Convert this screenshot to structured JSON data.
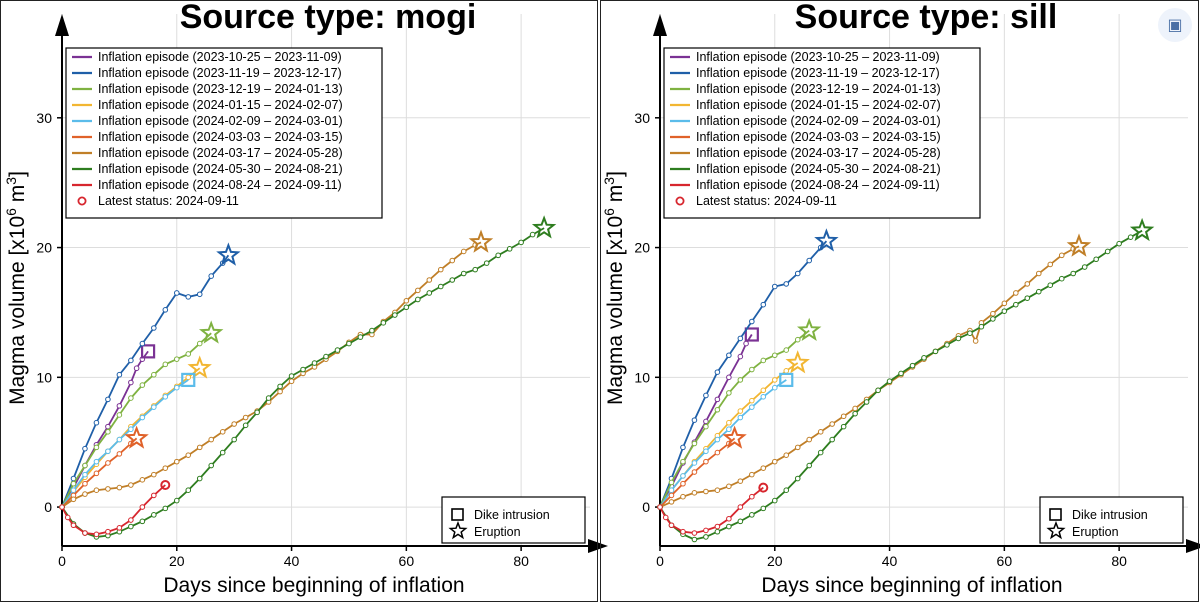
{
  "chart_data": [
    {
      "type": "line",
      "title": "Source type: mogi",
      "xlabel": "Days since beginning of inflation",
      "ylabel": "Magma volume [x10",
      "ylabel_sup": "6",
      "ylabel_unit": " m",
      "ylabel_sup2": "3",
      "ylabel_end": "]",
      "xlim": [
        0,
        92
      ],
      "ylim": [
        -3,
        38
      ],
      "xticks": [
        0,
        20,
        40,
        60,
        80
      ],
      "yticks": [
        0,
        10,
        20,
        30
      ],
      "grid": true,
      "legend_position": "top-left",
      "latest_status_label": "Latest status: 2024-09-11",
      "marker_legend": {
        "dike": "Dike intrusion",
        "eruption": "Eruption"
      },
      "series": [
        {
          "name": "Inflation episode (2023-10-25 – 2023-11-09)",
          "color": "#7b3294",
          "end_marker": "square",
          "x": [
            0,
            2,
            4,
            6,
            8,
            10,
            12,
            13,
            14,
            15
          ],
          "y": [
            0,
            1.5,
            3.2,
            4.8,
            6.2,
            7.8,
            9.6,
            10.7,
            11.4,
            12.0
          ]
        },
        {
          "name": "Inflation episode (2023-11-19 – 2023-12-17)",
          "color": "#1f5fa8",
          "end_marker": "star",
          "x": [
            0,
            2,
            4,
            6,
            8,
            10,
            12,
            14,
            16,
            18,
            20,
            22,
            24,
            26,
            28,
            29
          ],
          "y": [
            0,
            2.2,
            4.5,
            6.5,
            8.3,
            10.2,
            11.3,
            12.6,
            13.8,
            15.2,
            16.5,
            16.2,
            16.4,
            17.8,
            18.8,
            19.4
          ]
        },
        {
          "name": "Inflation episode (2023-12-19 – 2024-01-13)",
          "color": "#7fb241",
          "end_marker": "star",
          "x": [
            0,
            2,
            4,
            6,
            8,
            10,
            12,
            14,
            16,
            18,
            20,
            22,
            24,
            26
          ],
          "y": [
            0,
            1.8,
            3.2,
            4.6,
            5.8,
            7.1,
            8.4,
            9.4,
            10.2,
            11.0,
            11.4,
            11.8,
            12.6,
            13.4
          ]
        },
        {
          "name": "Inflation episode (2024-01-15 – 2024-02-07)",
          "color": "#f2b632",
          "end_marker": "star",
          "x": [
            0,
            2,
            4,
            6,
            8,
            10,
            12,
            14,
            16,
            18,
            20,
            22,
            24
          ],
          "y": [
            0,
            1.2,
            2.3,
            3.3,
            4.3,
            5.2,
            6.2,
            7.0,
            7.8,
            8.6,
            9.3,
            10.0,
            10.7
          ]
        },
        {
          "name": "Inflation episode (2024-02-09 – 2024-03-01)",
          "color": "#5bbcea",
          "end_marker": "square",
          "x": [
            0,
            2,
            4,
            6,
            8,
            10,
            12,
            14,
            16,
            18,
            20,
            22
          ],
          "y": [
            0,
            1.3,
            2.5,
            3.5,
            4.3,
            5.2,
            6.0,
            6.9,
            7.7,
            8.5,
            9.2,
            9.8
          ]
        },
        {
          "name": "Inflation episode (2024-03-03 – 2024-03-15)",
          "color": "#e0622a",
          "end_marker": "star",
          "x": [
            0,
            2,
            4,
            6,
            8,
            10,
            12,
            13
          ],
          "y": [
            0,
            0.9,
            1.8,
            2.6,
            3.4,
            4.1,
            4.9,
            5.3
          ]
        },
        {
          "name": "Inflation episode (2024-03-17 – 2024-05-28)",
          "color": "#c07f28",
          "end_marker": "star",
          "x": [
            0,
            2,
            4,
            6,
            8,
            10,
            12,
            14,
            16,
            18,
            20,
            22,
            24,
            26,
            28,
            30,
            32,
            34,
            36,
            38,
            40,
            42,
            44,
            46,
            48,
            50,
            52,
            54,
            56,
            58,
            60,
            62,
            64,
            66,
            68,
            70,
            72,
            73
          ],
          "y": [
            0,
            0.6,
            1.0,
            1.3,
            1.4,
            1.5,
            1.7,
            2.1,
            2.5,
            3.0,
            3.5,
            4.0,
            4.6,
            5.2,
            5.8,
            6.4,
            6.9,
            7.4,
            8.1,
            8.9,
            9.7,
            10.3,
            10.8,
            11.4,
            12.0,
            12.7,
            13.3,
            13.3,
            14.3,
            15.0,
            15.9,
            16.7,
            17.5,
            18.3,
            19.0,
            19.7,
            20.2,
            20.4
          ]
        },
        {
          "name": "Inflation episode (2024-05-30 – 2024-08-21)",
          "color": "#2e7d1f",
          "end_marker": "star",
          "x": [
            0,
            2,
            4,
            6,
            8,
            10,
            12,
            14,
            16,
            18,
            20,
            22,
            24,
            26,
            28,
            30,
            32,
            34,
            36,
            38,
            40,
            42,
            44,
            46,
            48,
            50,
            52,
            54,
            56,
            58,
            60,
            62,
            64,
            66,
            68,
            70,
            72,
            74,
            76,
            78,
            80,
            82,
            84
          ],
          "y": [
            0,
            -1.3,
            -2.0,
            -2.3,
            -2.2,
            -1.9,
            -1.5,
            -1.1,
            -0.6,
            -0.1,
            0.5,
            1.3,
            2.2,
            3.2,
            4.2,
            5.2,
            6.3,
            7.3,
            8.4,
            9.3,
            10.1,
            10.6,
            11.1,
            11.6,
            12.1,
            12.6,
            13.1,
            13.6,
            14.2,
            14.8,
            15.4,
            16.0,
            16.5,
            17.0,
            17.5,
            18.0,
            18.3,
            18.8,
            19.4,
            19.9,
            20.4,
            21.0,
            21.5
          ]
        },
        {
          "name": "Inflation episode (2024-08-24 – 2024-09-11)",
          "color": "#d7262e",
          "end_marker": "circle",
          "x": [
            0,
            1,
            2,
            4,
            6,
            8,
            10,
            12,
            14,
            16,
            18
          ],
          "y": [
            0,
            -0.8,
            -1.4,
            -2.0,
            -2.1,
            -1.9,
            -1.6,
            -1.0,
            0.0,
            0.9,
            1.7
          ]
        }
      ]
    },
    {
      "type": "line",
      "title": "Source type: sill",
      "xlabel": "Days since beginning of inflation",
      "ylabel": "Magma volume [x10",
      "ylabel_sup": "6",
      "ylabel_unit": " m",
      "ylabel_sup2": "3",
      "ylabel_end": "]",
      "xlim": [
        0,
        92
      ],
      "ylim": [
        -3,
        38
      ],
      "xticks": [
        0,
        20,
        40,
        60,
        80
      ],
      "yticks": [
        0,
        10,
        20,
        30
      ],
      "grid": true,
      "legend_position": "top-left",
      "latest_status_label": "Latest status: 2024-09-11",
      "marker_legend": {
        "dike": "Dike intrusion",
        "eruption": "Eruption"
      },
      "series": [
        {
          "name": "Inflation episode (2023-10-25 – 2023-11-09)",
          "color": "#7b3294",
          "end_marker": "square",
          "x": [
            0,
            2,
            4,
            6,
            8,
            10,
            12,
            14,
            15,
            16
          ],
          "y": [
            0,
            1.6,
            3.4,
            5.0,
            6.6,
            8.3,
            10.0,
            11.6,
            12.6,
            13.3
          ]
        },
        {
          "name": "Inflation episode (2023-11-19 – 2023-12-17)",
          "color": "#1f5fa8",
          "end_marker": "star",
          "x": [
            0,
            2,
            4,
            6,
            8,
            10,
            12,
            14,
            16,
            18,
            20,
            22,
            24,
            26,
            28,
            29
          ],
          "y": [
            0,
            2.2,
            4.6,
            6.7,
            8.6,
            10.4,
            11.7,
            13.0,
            14.3,
            15.6,
            17.0,
            17.2,
            18.0,
            19.0,
            20.0,
            20.5
          ]
        },
        {
          "name": "Inflation episode (2023-12-19 – 2024-01-13)",
          "color": "#7fb241",
          "end_marker": "star",
          "x": [
            0,
            2,
            4,
            6,
            8,
            10,
            12,
            14,
            16,
            18,
            20,
            22,
            24,
            26
          ],
          "y": [
            0,
            1.9,
            3.5,
            4.9,
            6.2,
            7.5,
            8.8,
            9.8,
            10.6,
            11.3,
            11.7,
            12.1,
            12.9,
            13.6
          ]
        },
        {
          "name": "Inflation episode (2024-01-15 – 2024-02-07)",
          "color": "#f2b632",
          "end_marker": "star",
          "x": [
            0,
            2,
            4,
            6,
            8,
            10,
            12,
            14,
            16,
            18,
            20,
            22,
            24
          ],
          "y": [
            0,
            1.3,
            2.4,
            3.5,
            4.5,
            5.5,
            6.5,
            7.4,
            8.2,
            9.0,
            9.8,
            10.5,
            11.1
          ]
        },
        {
          "name": "Inflation episode (2024-02-09 – 2024-03-01)",
          "color": "#5bbcea",
          "end_marker": "square",
          "x": [
            0,
            2,
            4,
            6,
            8,
            10,
            12,
            14,
            16,
            18,
            20,
            22
          ],
          "y": [
            0,
            1.3,
            2.4,
            3.4,
            4.3,
            5.2,
            6.0,
            6.9,
            7.7,
            8.5,
            9.2,
            9.8
          ]
        },
        {
          "name": "Inflation episode (2024-03-03 – 2024-03-15)",
          "color": "#e0622a",
          "end_marker": "star",
          "x": [
            0,
            2,
            4,
            6,
            8,
            10,
            12,
            13
          ],
          "y": [
            0,
            0.9,
            1.8,
            2.7,
            3.5,
            4.2,
            4.9,
            5.3
          ]
        },
        {
          "name": "Inflation episode (2024-03-17 – 2024-05-28)",
          "color": "#c07f28",
          "end_marker": "star",
          "x": [
            0,
            2,
            4,
            6,
            8,
            10,
            12,
            14,
            16,
            18,
            20,
            22,
            24,
            26,
            28,
            30,
            32,
            34,
            36,
            38,
            40,
            42,
            44,
            46,
            48,
            50,
            52,
            54,
            55,
            56,
            58,
            60,
            62,
            64,
            66,
            68,
            70,
            72,
            73
          ],
          "y": [
            0,
            0.4,
            0.8,
            1.1,
            1.2,
            1.3,
            1.6,
            2.0,
            2.5,
            3.0,
            3.5,
            4.0,
            4.6,
            5.2,
            5.8,
            6.4,
            7.0,
            7.6,
            8.3,
            9.0,
            9.6,
            10.2,
            10.8,
            11.4,
            12.0,
            12.6,
            13.2,
            13.6,
            12.8,
            14.2,
            14.9,
            15.7,
            16.5,
            17.2,
            18.0,
            18.7,
            19.4,
            19.9,
            20.1
          ]
        },
        {
          "name": "Inflation episode (2024-05-30 – 2024-08-21)",
          "color": "#2e7d1f",
          "end_marker": "star",
          "x": [
            0,
            2,
            4,
            6,
            8,
            10,
            12,
            14,
            16,
            18,
            20,
            22,
            24,
            26,
            28,
            30,
            32,
            34,
            36,
            38,
            40,
            42,
            44,
            46,
            48,
            50,
            52,
            54,
            56,
            58,
            60,
            62,
            64,
            66,
            68,
            70,
            72,
            74,
            76,
            78,
            80,
            82,
            84
          ],
          "y": [
            0,
            -1.4,
            -2.1,
            -2.5,
            -2.3,
            -1.9,
            -1.5,
            -1.1,
            -0.6,
            -0.1,
            0.5,
            1.3,
            2.2,
            3.2,
            4.2,
            5.2,
            6.2,
            7.2,
            8.1,
            9.0,
            9.7,
            10.3,
            10.9,
            11.5,
            12.0,
            12.5,
            13.0,
            13.4,
            13.9,
            14.5,
            15.1,
            15.6,
            16.1,
            16.6,
            17.1,
            17.6,
            18.0,
            18.5,
            19.1,
            19.7,
            20.3,
            20.8,
            21.3
          ]
        },
        {
          "name": "Inflation episode (2024-08-24 – 2024-09-11)",
          "color": "#d7262e",
          "end_marker": "circle",
          "x": [
            0,
            1,
            2,
            4,
            6,
            8,
            10,
            12,
            14,
            16,
            18
          ],
          "y": [
            0,
            -0.8,
            -1.4,
            -1.9,
            -2.0,
            -1.8,
            -1.5,
            -0.9,
            0.0,
            0.8,
            1.5
          ]
        }
      ]
    }
  ]
}
